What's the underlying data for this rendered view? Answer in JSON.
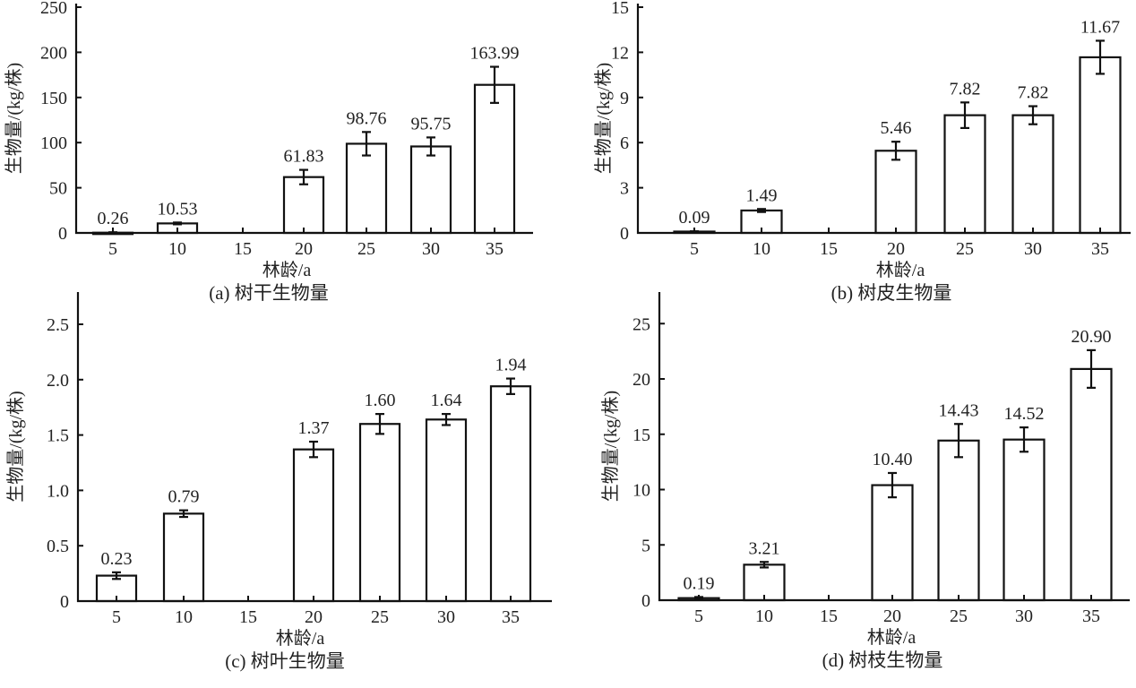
{
  "chart_data": [
    {
      "type": "bar",
      "title": "(a) 树干生物量",
      "xlabel": "林龄/a",
      "ylabel": "生物量/(kg/株)",
      "categories": [
        "5",
        "10",
        "15",
        "20",
        "25",
        "30",
        "35"
      ],
      "values": [
        0.26,
        10.53,
        null,
        61.83,
        98.76,
        95.75,
        163.99
      ],
      "value_labels": [
        "0.26",
        "10.53",
        "",
        "61.83",
        "98.76",
        "95.75",
        "163.99"
      ],
      "errors": [
        0.5,
        1,
        null,
        8,
        13,
        10,
        20
      ],
      "ylim": [
        0,
        250
      ],
      "yticks": [
        "0",
        "50",
        "100",
        "150",
        "200",
        "250"
      ],
      "grid": false
    },
    {
      "type": "bar",
      "title": "(b) 树皮生物量",
      "xlabel": "林龄/a",
      "ylabel": "生物量/(kg/株)",
      "categories": [
        "5",
        "10",
        "15",
        "20",
        "25",
        "30",
        "35"
      ],
      "values": [
        0.09,
        1.49,
        null,
        5.46,
        7.82,
        7.82,
        11.67
      ],
      "value_labels": [
        "0.09",
        "1.49",
        "",
        "5.46",
        "7.82",
        "7.82",
        "11.67"
      ],
      "errors": [
        0.02,
        0.1,
        null,
        0.6,
        0.85,
        0.6,
        1.1
      ],
      "ylim": [
        0,
        15
      ],
      "yticks": [
        "0",
        "3",
        "6",
        "9",
        "12",
        "15"
      ],
      "grid": false
    },
    {
      "type": "bar",
      "title": "(c) 树叶生物量",
      "xlabel": "林龄/a",
      "ylabel": "生物量/(kg/株)",
      "categories": [
        "5",
        "10",
        "15",
        "20",
        "25",
        "30",
        "35"
      ],
      "values": [
        0.23,
        0.79,
        null,
        1.37,
        1.6,
        1.64,
        1.94
      ],
      "value_labels": [
        "0.23",
        "0.79",
        "",
        "1.37",
        "1.60",
        "1.64",
        "1.94"
      ],
      "errors": [
        0.03,
        0.03,
        null,
        0.07,
        0.09,
        0.05,
        0.07
      ],
      "ylim": [
        0,
        2.5
      ],
      "yticks": [
        "0",
        "0.5",
        "1.0",
        "1.5",
        "2.0",
        "2.5"
      ],
      "grid": false
    },
    {
      "type": "bar",
      "title": "(d) 树枝生物量",
      "xlabel": "林龄/a",
      "ylabel": "生物量/(kg/株)",
      "categories": [
        "5",
        "10",
        "15",
        "20",
        "25",
        "30",
        "35"
      ],
      "values": [
        0.19,
        3.21,
        null,
        10.4,
        14.43,
        14.52,
        20.9
      ],
      "value_labels": [
        "0.19",
        "3.21",
        "",
        "10.40",
        "14.43",
        "14.52",
        "20.90"
      ],
      "errors": [
        0.1,
        0.25,
        null,
        1.1,
        1.5,
        1.1,
        1.7
      ],
      "ylim": [
        0,
        25
      ],
      "yticks": [
        "0",
        "5",
        "10",
        "15",
        "20",
        "25"
      ],
      "grid": false
    }
  ]
}
